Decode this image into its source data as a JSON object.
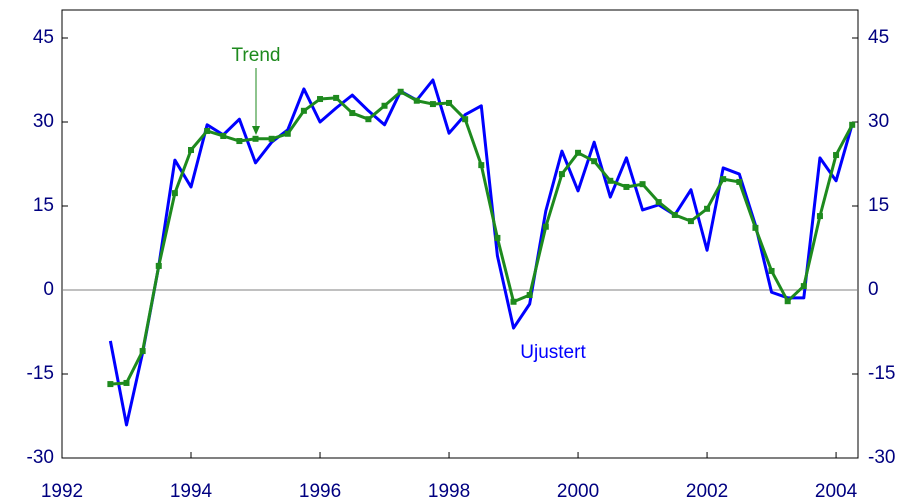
{
  "chart_data": {
    "type": "line",
    "x": [
      1992.75,
      1993,
      1993.25,
      1993.5,
      1993.75,
      1994,
      1994.25,
      1994.5,
      1994.75,
      1995,
      1995.25,
      1995.5,
      1995.75,
      1996,
      1996.25,
      1996.5,
      1996.75,
      1997,
      1997.25,
      1997.5,
      1997.75,
      1998,
      1998.25,
      1998.5,
      1998.75,
      1999,
      1999.25,
      1999.5,
      1999.75,
      2000,
      2000.25,
      2000.5,
      2000.75,
      2001,
      2001.25,
      2001.5,
      2001.75,
      2002,
      2002.25,
      2002.5,
      2002.75,
      2003,
      2003.25,
      2003.5,
      2003.75,
      2004,
      2004.25
    ],
    "series": [
      {
        "name": "Ujustert",
        "color": "#0000ff",
        "values": [
          -9.1,
          -24.1,
          -11.2,
          4.3,
          23.2,
          18.4,
          29.5,
          27.7,
          30.5,
          22.7,
          26.4,
          28.6,
          35.9,
          30,
          32.5,
          34.8,
          32,
          29.5,
          35.5,
          33.9,
          37.5,
          28,
          31.3,
          32.9,
          6.1,
          -6.8,
          -2.5,
          14.1,
          24.8,
          17.7,
          26.4,
          16.6,
          23.6,
          14.3,
          15.2,
          13.4,
          17.9,
          7.1,
          21.8,
          20.7,
          11.6,
          -0.4,
          -1.4,
          -1.4,
          23.6,
          19.5,
          29.6
        ]
      },
      {
        "name": "Trend",
        "color": "#1e8a1e",
        "markers": true,
        "values": [
          -16.8,
          -16.6,
          -10.9,
          4.3,
          17.3,
          25,
          28.4,
          27.5,
          26.6,
          27,
          27,
          27.9,
          32,
          34.1,
          34.3,
          31.6,
          30.5,
          32.9,
          35.4,
          33.8,
          33.2,
          33.4,
          30.5,
          22.3,
          9.3,
          -2.1,
          -0.9,
          11.3,
          20.7,
          24.5,
          23,
          19.5,
          18.4,
          18.9,
          15.7,
          13.4,
          12.3,
          14.5,
          19.8,
          19.3,
          11.1,
          3.4,
          -2,
          0.7,
          13.2,
          24.1,
          29.5
        ]
      }
    ],
    "xlim": [
      1992,
      2004.34
    ],
    "xticks": [
      1992,
      1994,
      1996,
      1998,
      2000,
      2002,
      2004
    ],
    "ylim": [
      -30,
      50
    ],
    "yticks": [
      -30,
      -15,
      0,
      15,
      30,
      45
    ],
    "y2lim": [
      -30,
      50
    ],
    "y2ticks": [
      -30,
      -15,
      0,
      15,
      30,
      45
    ],
    "zero_line": true
  }
}
